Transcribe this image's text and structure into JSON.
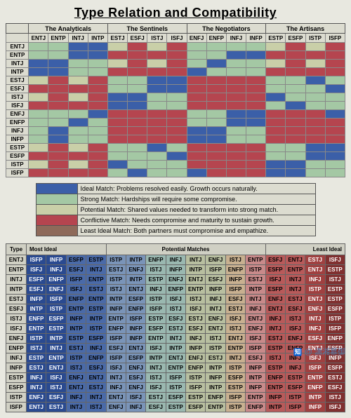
{
  "title": "Type Relation and Compatibility",
  "groups": [
    "The Analyticals",
    "The Sentinels",
    "The Negotiators",
    "The Artisans"
  ],
  "types_cols": [
    "ENTJ",
    "ENTP",
    "INTJ",
    "INTP",
    "ESTJ",
    "ESFJ",
    "ISTJ",
    "ISFJ",
    "ENFJ",
    "ENFP",
    "INFJ",
    "INFP",
    "ESTP",
    "ESFP",
    "ISTP",
    "ISFP"
  ],
  "types_rows": [
    "ENTJ",
    "ENTP",
    "INTJ",
    "INTP",
    "ESTJ",
    "ESFJ",
    "ISTJ",
    "ISFJ",
    "ENFJ",
    "ENFP",
    "INFJ",
    "INFP",
    "ESTP",
    "ESFP",
    "ISTP",
    "ISFP"
  ],
  "colors": {
    "ideal": "#3b5fa8",
    "strong": "#a4c8a4",
    "potential": "#c9cfa8",
    "conflictive": "#b5454f",
    "least": "#8e6a5a",
    "grad_blue4": "#2a4a90",
    "grad_blue3": "#4a6aa8",
    "grad_blue2": "#7a94b8",
    "grad_teal": "#9ab8b0",
    "grad_olive": "#b8bfa0",
    "grad_tan": "#c8b090",
    "grad_rose": "#c88a8a",
    "grad_red2": "#b85a5a",
    "grad_red3": "#a04040",
    "grad_red4": "#803030"
  },
  "legend": [
    {
      "color": "ideal",
      "text": "Ideal Match: Problems resolved easily. Growth occurs naturally."
    },
    {
      "color": "strong",
      "text": "Strong Match: Hardships will require some compromise."
    },
    {
      "color": "potential",
      "text": "Potential Match: Shared values needed to transform into strong match."
    },
    {
      "color": "conflictive",
      "text": "Conflictive Match: Needs compromise and maturity to sustain growth."
    },
    {
      "color": "least",
      "text": "Least Ideal Match: Both partners must compromise and empathize."
    }
  ],
  "matrix": [
    [
      "strong",
      "strong",
      "ideal",
      "ideal",
      "potential",
      "conflictive",
      "potential",
      "conflictive",
      "strong",
      "strong",
      "strong",
      "strong",
      "potential",
      "conflictive",
      "potential",
      "conflictive"
    ],
    [
      "strong",
      "strong",
      "ideal",
      "ideal",
      "conflictive",
      "conflictive",
      "conflictive",
      "conflictive",
      "strong",
      "strong",
      "ideal",
      "ideal",
      "conflictive",
      "conflictive",
      "conflictive",
      "conflictive"
    ],
    [
      "ideal",
      "ideal",
      "strong",
      "strong",
      "potential",
      "conflictive",
      "potential",
      "conflictive",
      "strong",
      "ideal",
      "strong",
      "strong",
      "potential",
      "conflictive",
      "potential",
      "conflictive"
    ],
    [
      "ideal",
      "ideal",
      "strong",
      "strong",
      "conflictive",
      "conflictive",
      "conflictive",
      "conflictive",
      "ideal",
      "strong",
      "strong",
      "strong",
      "conflictive",
      "conflictive",
      "conflictive",
      "conflictive"
    ],
    [
      "potential",
      "conflictive",
      "potential",
      "conflictive",
      "strong",
      "strong",
      "ideal",
      "ideal",
      "conflictive",
      "conflictive",
      "conflictive",
      "conflictive",
      "strong",
      "strong",
      "ideal",
      "strong"
    ],
    [
      "conflictive",
      "conflictive",
      "conflictive",
      "conflictive",
      "strong",
      "strong",
      "ideal",
      "ideal",
      "conflictive",
      "conflictive",
      "conflictive",
      "conflictive",
      "strong",
      "strong",
      "strong",
      "ideal"
    ],
    [
      "potential",
      "conflictive",
      "potential",
      "conflictive",
      "ideal",
      "ideal",
      "strong",
      "strong",
      "conflictive",
      "conflictive",
      "conflictive",
      "conflictive",
      "ideal",
      "strong",
      "strong",
      "strong"
    ],
    [
      "conflictive",
      "conflictive",
      "conflictive",
      "conflictive",
      "ideal",
      "ideal",
      "strong",
      "strong",
      "conflictive",
      "conflictive",
      "conflictive",
      "conflictive",
      "strong",
      "ideal",
      "strong",
      "strong"
    ],
    [
      "strong",
      "strong",
      "strong",
      "ideal",
      "conflictive",
      "conflictive",
      "conflictive",
      "conflictive",
      "strong",
      "strong",
      "ideal",
      "ideal",
      "conflictive",
      "conflictive",
      "conflictive",
      "ideal"
    ],
    [
      "strong",
      "strong",
      "ideal",
      "strong",
      "conflictive",
      "conflictive",
      "conflictive",
      "conflictive",
      "strong",
      "strong",
      "ideal",
      "ideal",
      "conflictive",
      "conflictive",
      "conflictive",
      "conflictive"
    ],
    [
      "strong",
      "ideal",
      "strong",
      "strong",
      "conflictive",
      "conflictive",
      "conflictive",
      "conflictive",
      "ideal",
      "ideal",
      "strong",
      "strong",
      "conflictive",
      "conflictive",
      "conflictive",
      "conflictive"
    ],
    [
      "strong",
      "ideal",
      "strong",
      "strong",
      "conflictive",
      "conflictive",
      "conflictive",
      "conflictive",
      "ideal",
      "ideal",
      "strong",
      "strong",
      "conflictive",
      "conflictive",
      "conflictive",
      "conflictive"
    ],
    [
      "potential",
      "conflictive",
      "potential",
      "conflictive",
      "strong",
      "strong",
      "ideal",
      "strong",
      "conflictive",
      "conflictive",
      "conflictive",
      "conflictive",
      "strong",
      "strong",
      "ideal",
      "ideal"
    ],
    [
      "conflictive",
      "conflictive",
      "conflictive",
      "conflictive",
      "strong",
      "strong",
      "strong",
      "ideal",
      "conflictive",
      "conflictive",
      "conflictive",
      "conflictive",
      "strong",
      "strong",
      "ideal",
      "ideal"
    ],
    [
      "potential",
      "conflictive",
      "potential",
      "conflictive",
      "ideal",
      "strong",
      "strong",
      "strong",
      "conflictive",
      "conflictive",
      "conflictive",
      "conflictive",
      "ideal",
      "ideal",
      "strong",
      "strong"
    ],
    [
      "conflictive",
      "conflictive",
      "conflictive",
      "conflictive",
      "strong",
      "ideal",
      "strong",
      "strong",
      "ideal",
      "conflictive",
      "conflictive",
      "conflictive",
      "ideal",
      "ideal",
      "strong",
      "strong"
    ]
  ],
  "chart2_header": {
    "left": "Type",
    "mid1": "Most Ideal",
    "mid2": "Potential Matches",
    "right": "Least Ideal"
  },
  "chart2": [
    {
      "t": "ENTJ",
      "cells": [
        "ISFP",
        "INFP",
        "ESFP",
        "ESTP",
        "ISTP",
        "INTP",
        "ENFP",
        "INFJ",
        "INTJ",
        "ENFJ",
        "ISTJ",
        "ENTP",
        "ESFJ",
        "ENTJ",
        "ESTJ",
        "ISFJ"
      ]
    },
    {
      "t": "ENTP",
      "cells": [
        "ISFJ",
        "INFJ",
        "ESFJ",
        "INTJ",
        "ESTJ",
        "ENFJ",
        "ISTJ",
        "INFP",
        "INTP",
        "ISFP",
        "ENFP",
        "ISTP",
        "ESFP",
        "ENTP",
        "ENTJ",
        "ESTP"
      ]
    },
    {
      "t": "INTJ",
      "cells": [
        "ESFP",
        "ENFP",
        "ISFP",
        "ENTP",
        "ISTP",
        "INTP",
        "ESTP",
        "ENFJ",
        "ENTJ",
        "ESFJ",
        "INFP",
        "ESTJ",
        "ISFJ",
        "INTJ",
        "INFJ",
        "ISTJ"
      ]
    },
    {
      "t": "INTP",
      "cells": [
        "ESFJ",
        "ENFJ",
        "ISFJ",
        "ESTJ",
        "ISTJ",
        "ENTJ",
        "INFJ",
        "ENFP",
        "ENTP",
        "INFP",
        "ISFP",
        "INTP",
        "ESFP",
        "INTJ",
        "ISTP",
        "ESTP"
      ]
    },
    {
      "t": "ESTJ",
      "cells": [
        "INFP",
        "ISFP",
        "ENFP",
        "ENTP",
        "INTP",
        "ESFP",
        "ISTP",
        "ISFJ",
        "ISTJ",
        "INFJ",
        "ESFJ",
        "INTJ",
        "ENFJ",
        "ESTJ",
        "ENTJ",
        "ESTP"
      ]
    },
    {
      "t": "ESFJ",
      "cells": [
        "INTP",
        "ISTP",
        "ENTP",
        "ESTP",
        "INFP",
        "ENFP",
        "ISFP",
        "ISTJ",
        "ISFJ",
        "INTJ",
        "ESTJ",
        "INFJ",
        "ENTJ",
        "ESFJ",
        "ENFJ",
        "ESFP"
      ]
    },
    {
      "t": "ISTJ",
      "cells": [
        "ENFP",
        "ESFP",
        "INFP",
        "INTP",
        "ENTP",
        "ISFP",
        "ESTP",
        "ESFJ",
        "ESTJ",
        "ENFJ",
        "ISFJ",
        "ENTJ",
        "INFJ",
        "ISTJ",
        "INTJ",
        "ISTP"
      ]
    },
    {
      "t": "ISFJ",
      "cells": [
        "ENTP",
        "ESTP",
        "INTP",
        "ISTP",
        "ENFP",
        "INFP",
        "ESFP",
        "ESTJ",
        "ESFJ",
        "ENTJ",
        "ISTJ",
        "ENFJ",
        "INTJ",
        "ISFJ",
        "INFJ",
        "ISFP"
      ]
    },
    {
      "t": "ENFJ",
      "cells": [
        "ISTP",
        "INTP",
        "ESTP",
        "ESFP",
        "ISFP",
        "INFP",
        "ENTP",
        "INTJ",
        "INFJ",
        "ISTJ",
        "ENTJ",
        "ISFJ",
        "ESTJ",
        "ENFJ",
        "ESFJ",
        "ENFP"
      ]
    },
    {
      "t": "ENFP",
      "cells": [
        "ISTJ",
        "INTJ",
        "ESTJ",
        "INFJ",
        "ESFJ",
        "ENTJ",
        "ISFJ",
        "INTP",
        "INFP",
        "ISTP",
        "ENTP",
        "ISFP",
        "ESTP",
        "ENFP",
        "ENTJ",
        "ESFP"
      ]
    },
    {
      "t": "INFJ",
      "cells": [
        "ESTP",
        "ENTP",
        "ISTP",
        "ENFP",
        "ISFP",
        "ESFP",
        "INTP",
        "ENTJ",
        "ENFJ",
        "ESTJ",
        "INTJ",
        "ESFJ",
        "ISTJ",
        "INFJ",
        "ISFJ",
        "INFP"
      ]
    },
    {
      "t": "INFP",
      "cells": [
        "ESTJ",
        "ENTJ",
        "ISTJ",
        "ESFJ",
        "ISFJ",
        "ENFJ",
        "INTJ",
        "ENTP",
        "ENFP",
        "INTP",
        "ISTP",
        "INFP",
        "ESTP",
        "INFJ",
        "ISFP",
        "ESFP"
      ]
    },
    {
      "t": "ESTP",
      "cells": [
        "INFJ",
        "ISFJ",
        "ENFJ",
        "ENTJ",
        "INTJ",
        "ESFJ",
        "ISTJ",
        "ISFP",
        "ISTP",
        "INFP",
        "ESFP",
        "INTP",
        "ENFP",
        "ESTP",
        "ENTP",
        "ESTJ"
      ]
    },
    {
      "t": "ESFP",
      "cells": [
        "INTJ",
        "ISTJ",
        "ENTJ",
        "ESTJ",
        "INFJ",
        "ENFJ",
        "ISFJ",
        "ISTP",
        "ISFP",
        "INTP",
        "ESTP",
        "INFP",
        "ENTP",
        "ESFP",
        "ENFP",
        "ESFJ"
      ]
    },
    {
      "t": "ISTP",
      "cells": [
        "ENFJ",
        "ESFJ",
        "INFJ",
        "INTJ",
        "ENTJ",
        "ISFJ",
        "ESTJ",
        "ESFP",
        "ESTP",
        "ENFP",
        "ISFP",
        "ENTP",
        "INFP",
        "ISTP",
        "INTP",
        "ISTJ"
      ]
    },
    {
      "t": "ISFP",
      "cells": [
        "ENTJ",
        "ESTJ",
        "INTJ",
        "ISTJ",
        "ENFJ",
        "INFJ",
        "ESFJ",
        "ESTP",
        "ESFP",
        "ENTP",
        "ISTP",
        "ENFP",
        "INTP",
        "ISFP",
        "INFP",
        "ISFJ"
      ]
    }
  ],
  "chart2_grad": [
    "grad_blue4",
    "grad_blue4",
    "grad_blue3",
    "grad_blue3",
    "grad_blue2",
    "grad_blue2",
    "grad_teal",
    "grad_teal",
    "grad_olive",
    "grad_olive",
    "grad_tan",
    "grad_rose",
    "grad_red2",
    "grad_red2",
    "grad_red3",
    "grad_red4"
  ],
  "watermark": "@ 潇湘慕御"
}
